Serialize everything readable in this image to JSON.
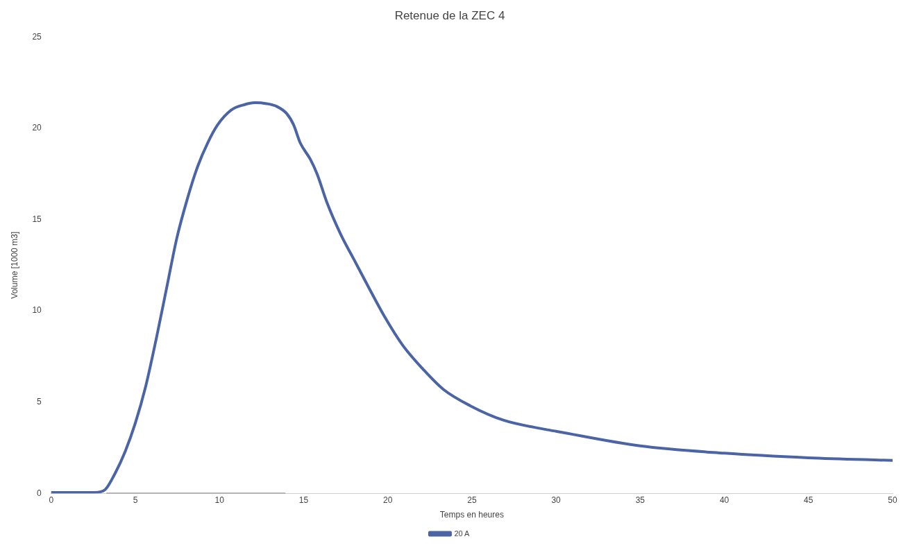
{
  "chart_data": {
    "type": "line",
    "title": "Retenue de la ZEC 4",
    "xlabel": "Temps en heures",
    "ylabel": "Volume [1000 m3]",
    "xlim": [
      0,
      50
    ],
    "xticks": [
      0,
      5,
      10,
      15,
      20,
      25,
      30,
      35,
      40,
      45,
      50
    ],
    "ylim": [
      0,
      25
    ],
    "yticks": [
      0,
      5,
      10,
      15,
      20,
      25
    ],
    "grid": false,
    "legend": "bottom",
    "marker": "none",
    "line_style": "solid",
    "series": [
      {
        "name": "20 A",
        "color": "#4a64a6",
        "x": [
          0,
          1,
          2,
          2.6,
          3.2,
          3.8,
          4.4,
          5.0,
          5.6,
          6.25,
          6.86,
          7.47,
          8.08,
          8.7,
          9.3,
          9.9,
          10.7,
          11.5,
          12.1,
          12.8,
          13.4,
          14.0,
          14.4,
          14.8,
          15.4,
          15.8,
          16.4,
          17.2,
          18.0,
          18.8,
          19.8,
          20.9,
          22.1,
          23.3,
          24.9,
          26.9,
          29.4,
          30,
          35,
          40,
          45,
          50
        ],
        "values": [
          0.05,
          0.05,
          0.05,
          0.05,
          0.2,
          1.1,
          2.3,
          3.85,
          5.8,
          8.5,
          11.25,
          14,
          16.1,
          17.9,
          19.2,
          20.2,
          21,
          21.3,
          21.4,
          21.35,
          21.2,
          20.8,
          20.2,
          19.2,
          18.3,
          17.5,
          15.9,
          14.2,
          12.8,
          11.4,
          9.7,
          8.1,
          6.8,
          5.7,
          4.8,
          4,
          3.5,
          3.4,
          2.6,
          2.2,
          1.95,
          1.8
        ]
      },
      {
        "color": "#666666",
        "x": [
          3.3,
          13.9
        ],
        "values": [
          0,
          0
        ]
      }
    ]
  }
}
